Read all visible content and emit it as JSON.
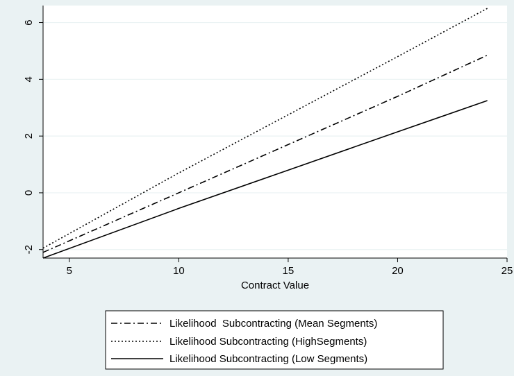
{
  "chart_data": {
    "type": "line",
    "xlabel": "Contract Value",
    "ylabel": "",
    "xlim": [
      3.8,
      25
    ],
    "ylim": [
      -2.3,
      6.6
    ],
    "xticks": [
      5,
      10,
      15,
      20,
      25
    ],
    "yticks": [
      -2,
      0,
      2,
      4,
      6
    ],
    "grid": "horizontal",
    "legend_position": "bottom",
    "series": [
      {
        "name": "Likelihood  Subcontracting (Mean Segments)",
        "style": "dash-dot",
        "x": [
          3.8,
          10,
          15,
          20,
          24.1
        ],
        "y": [
          -2.1,
          0.0,
          1.7,
          3.4,
          4.85
        ]
      },
      {
        "name": "Likelihood Subcontracting (HighSegments)",
        "style": "dotted",
        "x": [
          3.8,
          10,
          15,
          20,
          24.1
        ],
        "y": [
          -1.95,
          0.7,
          2.75,
          4.8,
          6.5
        ]
      },
      {
        "name": "Likelihood Subcontracting (Low Segments)",
        "style": "solid",
        "x": [
          3.8,
          10,
          15,
          20,
          24.1
        ],
        "y": [
          -2.3,
          -0.55,
          0.8,
          2.15,
          3.25
        ]
      }
    ]
  }
}
